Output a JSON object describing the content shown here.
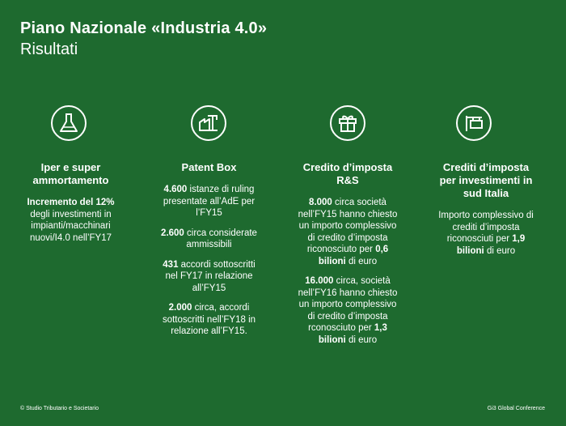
{
  "header": {
    "title": "Piano Nazionale «Industria 4.0»",
    "subtitle": "Risultati"
  },
  "columns": [
    {
      "icon": "flask-icon",
      "title_lines": [
        "Iper e super",
        "ammortamento"
      ],
      "blocks": [
        {
          "lines": [
            [
              {
                "t": "Incremento del 12%",
                "b": true
              }
            ],
            [
              {
                "t": "degli investimenti in",
                "b": false
              }
            ],
            [
              {
                "t": "impianti/macchinari",
                "b": false
              }
            ],
            [
              {
                "t": "nuovi/I4.0 nell’FY17",
                "b": false
              }
            ]
          ]
        }
      ]
    },
    {
      "icon": "factory-crane-icon",
      "title_lines": [
        "Patent Box"
      ],
      "blocks": [
        {
          "lines": [
            [
              {
                "t": "4.600",
                "b": true
              },
              {
                "t": " istanze di ruling",
                "b": false
              }
            ],
            [
              {
                "t": "presentate all’AdE per",
                "b": false
              }
            ],
            [
              {
                "t": "l’FY15",
                "b": false
              }
            ]
          ]
        },
        {
          "lines": [
            [
              {
                "t": "2.600",
                "b": true
              },
              {
                "t": " circa considerate",
                "b": false
              }
            ],
            [
              {
                "t": "ammissibili",
                "b": false
              }
            ]
          ]
        },
        {
          "lines": [
            [
              {
                "t": "431",
                "b": true
              },
              {
                "t": " accordi sottoscritti",
                "b": false
              }
            ],
            [
              {
                "t": "nel FY17 in relazione",
                "b": false
              }
            ],
            [
              {
                "t": "all’FY15",
                "b": false
              }
            ]
          ]
        },
        {
          "lines": [
            [
              {
                "t": "2.000",
                "b": true
              },
              {
                "t": " circa, accordi",
                "b": false
              }
            ],
            [
              {
                "t": "sottoscritti nell’FY18 in",
                "b": false
              }
            ],
            [
              {
                "t": "relazione all’FY15.",
                "b": false
              }
            ]
          ]
        }
      ]
    },
    {
      "icon": "gift-icon",
      "title_lines": [
        "Credito d’imposta",
        "R&S"
      ],
      "blocks": [
        {
          "lines": [
            [
              {
                "t": "8.000",
                "b": true
              },
              {
                "t": " circa società",
                "b": false
              }
            ],
            [
              {
                "t": "nell’FY15 hanno chiesto",
                "b": false
              }
            ],
            [
              {
                "t": "un importo complessivo",
                "b": false
              }
            ],
            [
              {
                "t": "di credito d’imposta",
                "b": false
              }
            ],
            [
              {
                "t": "riconosciuto per ",
                "b": false
              },
              {
                "t": "0,6",
                "b": true
              }
            ],
            [
              {
                "t": "bilioni",
                "b": true
              },
              {
                "t": " di euro",
                "b": false
              }
            ]
          ]
        },
        {
          "lines": [
            [
              {
                "t": "16.000",
                "b": true
              },
              {
                "t": " circa, società",
                "b": false
              }
            ],
            [
              {
                "t": "nell’FY16 hanno chiesto",
                "b": false
              }
            ],
            [
              {
                "t": "un importo complessivo",
                "b": false
              }
            ],
            [
              {
                "t": "di credito d’imposta",
                "b": false
              }
            ],
            [
              {
                "t": "rconosciuto per ",
                "b": false
              },
              {
                "t": "1,3",
                "b": true
              }
            ],
            [
              {
                "t": "bilioni",
                "b": true
              },
              {
                "t": " di euro",
                "b": false
              }
            ]
          ]
        }
      ]
    },
    {
      "icon": "shop-sign-icon",
      "title_lines": [
        "Crediti d’imposta",
        "per investimenti in",
        "sud Italia"
      ],
      "blocks": [
        {
          "lines": [
            [
              {
                "t": "Importo complessivo di",
                "b": false
              }
            ],
            [
              {
                "t": "crediti d’imposta",
                "b": false
              }
            ],
            [
              {
                "t": "riconosciuti per ",
                "b": false
              },
              {
                "t": "1,9",
                "b": true
              }
            ],
            [
              {
                "t": "bilioni",
                "b": true
              },
              {
                "t": " di euro",
                "b": false
              }
            ]
          ]
        }
      ]
    }
  ],
  "footer": {
    "left": "© Studio Tributario e Societario",
    "right": "Gi3 Global Conference"
  }
}
